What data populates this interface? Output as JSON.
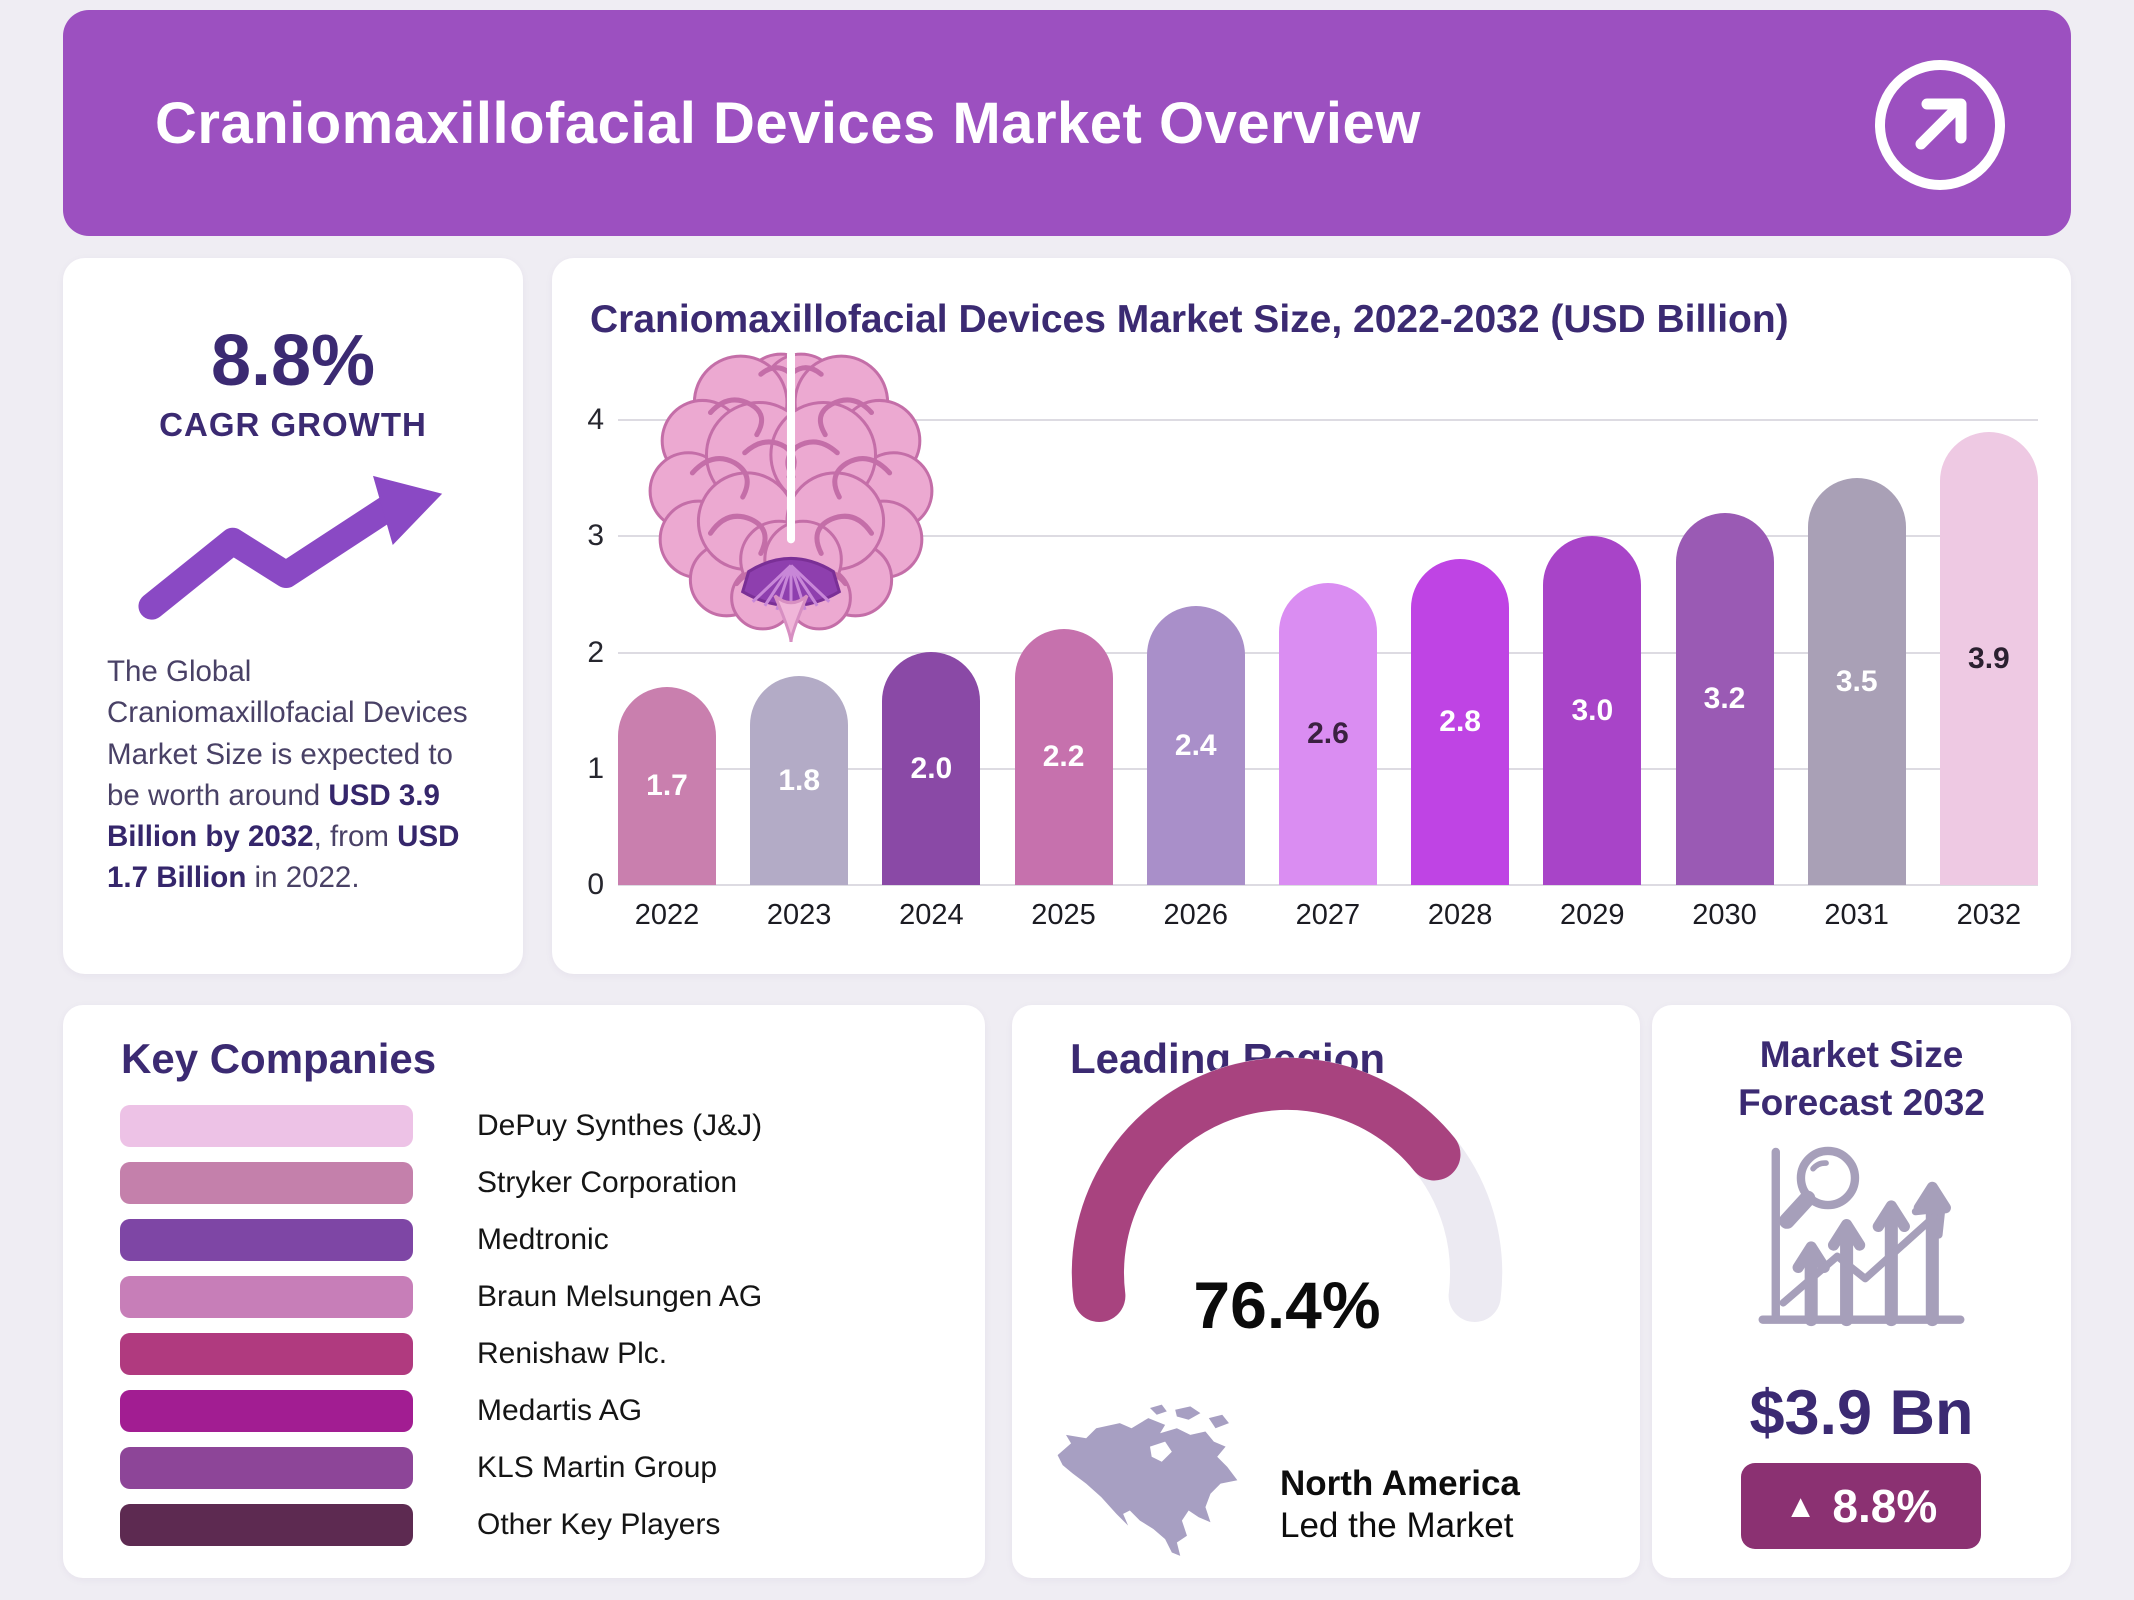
{
  "header": {
    "title": "Craniomaxillofacial Devices Market Overview",
    "bg_color": "#9c50c0",
    "icon": "arrow-up-right-circle"
  },
  "cagr_card": {
    "value": "8.8%",
    "label": "CAGR GROWTH",
    "icon": "trend-up-arrow",
    "description_segments": [
      {
        "t": "The Global Craniomaxillofacial Devices Market Size is expected to be worth around ",
        "b": false
      },
      {
        "t": "USD 3.9 Billion by 2032",
        "b": true
      },
      {
        "t": ", from ",
        "b": false
      },
      {
        "t": "USD 1.7 Billion",
        "b": true
      },
      {
        "t": " in 2022.",
        "b": false
      }
    ]
  },
  "chart_data": [
    {
      "type": "bar",
      "title": "Craniomaxillofacial Devices Market Size, 2022-2032 (USD Billion)",
      "categories": [
        "2022",
        "2023",
        "2024",
        "2025",
        "2026",
        "2027",
        "2028",
        "2029",
        "2030",
        "2031",
        "2032"
      ],
      "values": [
        1.7,
        1.8,
        2.0,
        2.2,
        2.4,
        2.6,
        2.8,
        3.0,
        3.2,
        3.5,
        3.9
      ],
      "value_labels": [
        "1.7",
        "1.8",
        "2.0",
        "2.2",
        "2.4",
        "2.6",
        "2.8",
        "3.0",
        "3.2",
        "3.5",
        "3.9"
      ],
      "bar_colors": [
        "#c97fae",
        "#b3abc6",
        "#8a49a6",
        "#c671ad",
        "#a98fc9",
        "#da8df2",
        "#bf44e4",
        "#a844c8",
        "#9a5ab4",
        "#a9a0b6",
        "#eec9e3"
      ],
      "value_label_colors": [
        "#ffffff",
        "#ffffff",
        "#ffffff",
        "#ffffff",
        "#ffffff",
        "#3a2140",
        "#ffffff",
        "#ffffff",
        "#ffffff",
        "#ffffff",
        "#2b2030"
      ],
      "xlabel": "",
      "ylabel": "",
      "ylim": [
        0,
        4
      ],
      "yticks": [
        0,
        1,
        2,
        3,
        4
      ],
      "grid": true,
      "decoration": "brain-illustration"
    },
    {
      "type": "gauge",
      "title": "Leading Region",
      "value": 76.4,
      "label": "76.4%",
      "region": "North America",
      "note": "Led the Market",
      "color": "#a8437f",
      "track_color": "#eceaf2",
      "start_deg": 187,
      "sweep_deg": 194
    }
  ],
  "key_companies": {
    "title": "Key Companies",
    "items": [
      {
        "label": "DePuy Synthes (J&J)",
        "color": "#edc2e6"
      },
      {
        "label": "Stryker Corporation",
        "color": "#c480ab"
      },
      {
        "label": "Medtronic",
        "color": "#7e46a5"
      },
      {
        "label": "Braun Melsungen AG",
        "color": "#c77eb8"
      },
      {
        "label": "Renishaw Plc.",
        "color": "#b03a7f"
      },
      {
        "label": "Medartis AG",
        "color": "#a21d92"
      },
      {
        "label": "KLS Martin Group",
        "color": "#8d4598"
      },
      {
        "label": "Other Key Players",
        "color": "#5d2a51"
      }
    ]
  },
  "leading_region": {
    "title": "Leading Region",
    "percent_label": "76.4%",
    "region": "North America",
    "note": "Led the Market",
    "map": "north-america"
  },
  "market_size": {
    "title_lines": [
      "Market Size",
      "Forecast 2032"
    ],
    "icon": "magnifier-growth-chart",
    "value": "$3.9 Bn",
    "up_symbol": "▲",
    "change": "8.8%",
    "badge_color": "#8b3172"
  }
}
